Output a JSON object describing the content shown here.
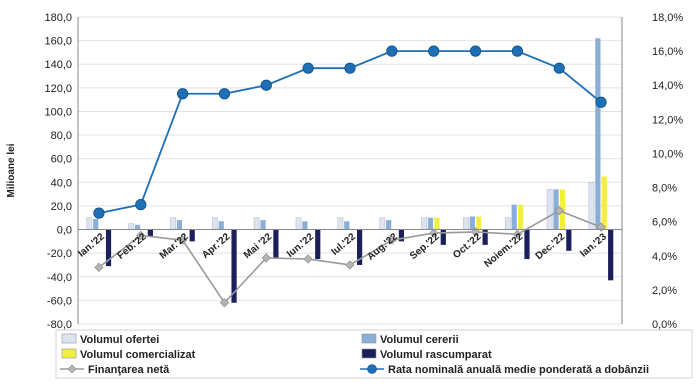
{
  "chart_data": {
    "type": "bar",
    "ylabel": "Milioane lei",
    "categories": [
      "Ian.'22",
      "Feb.'22",
      "Mar.'22",
      "Apr.'22",
      "Mai '22",
      "Iun.'22",
      "Iul.'22",
      "Aug.'22",
      "Sep.'22",
      "Oct.'22",
      "Noiem.'22",
      "Dec.'22",
      "Ian.'23"
    ],
    "ylim": [
      -80,
      180
    ],
    "y_ticks": [
      "-80,0",
      "-60,0",
      "-40,0",
      "-20,0",
      "0,0",
      "20,0",
      "40,0",
      "60,0",
      "80,0",
      "100,0",
      "120,0",
      "140,0",
      "160,0",
      "180,0"
    ],
    "y2lim": [
      0,
      18
    ],
    "y2_ticks": [
      "0,0%",
      "2,0%",
      "4,0%",
      "6,0%",
      "8,0%",
      "10,0%",
      "12,0%",
      "14,0%",
      "16,0%",
      "18,0%"
    ],
    "grid": true,
    "legend_position": "bottom",
    "series": [
      {
        "name": "Volumul ofertei",
        "kind": "bar",
        "color": "#dde3ef",
        "values": [
          10,
          5,
          10,
          10,
          10,
          10,
          10,
          10,
          10,
          10,
          10,
          34,
          40
        ]
      },
      {
        "name": "Volumul cererii",
        "kind": "bar",
        "color": "#8aaed6",
        "values": [
          9,
          4,
          8,
          7,
          8,
          7,
          7,
          8,
          10,
          11,
          21,
          34,
          162
        ]
      },
      {
        "name": "Volumul comercializat",
        "kind": "bar",
        "color": "#f2ef40",
        "values": [
          0,
          0,
          0,
          0,
          0,
          0,
          0,
          0,
          10,
          11,
          21,
          34,
          45
        ]
      },
      {
        "name": "Volumul rascumparat",
        "kind": "bar",
        "color": "#1b1f5c",
        "values": [
          -31,
          -6,
          -10,
          -62,
          -24,
          -25,
          -30,
          -10,
          -13,
          -13,
          -25,
          -18,
          -43
        ]
      },
      {
        "name": "Finanţarea netă",
        "kind": "line",
        "axis": "left",
        "color": "#9a9a9a",
        "values": [
          -32,
          -5,
          -9,
          -62,
          -24,
          -25,
          -30,
          -9,
          -3,
          -2,
          -4,
          16,
          2
        ]
      },
      {
        "name": "Rata nominală anuală medie ponderată a dobânzii",
        "kind": "line",
        "axis": "right",
        "color": "#1f6fb5",
        "values": [
          6.5,
          7.0,
          13.5,
          13.5,
          14.0,
          15.0,
          15.0,
          16.0,
          16.0,
          16.0,
          16.0,
          15.0,
          13.0
        ]
      }
    ]
  },
  "legend": [
    {
      "label": "Volumul ofertei",
      "color": "#dde3ef",
      "swatch": "bar"
    },
    {
      "label": "Volumul cererii",
      "color": "#8aaed6",
      "swatch": "bar"
    },
    {
      "label": "Volumul comercializat",
      "color": "#f2ef40",
      "swatch": "bar"
    },
    {
      "label": "Volumul rascumparat",
      "color": "#1b1f5c",
      "swatch": "bar"
    },
    {
      "label": "Finanţarea netă",
      "color": "#9a9a9a",
      "swatch": "line-diamond"
    },
    {
      "label": "Rata nominală anuală medie ponderată a dobânzii",
      "color": "#1f6fb5",
      "swatch": "line-circle"
    }
  ]
}
